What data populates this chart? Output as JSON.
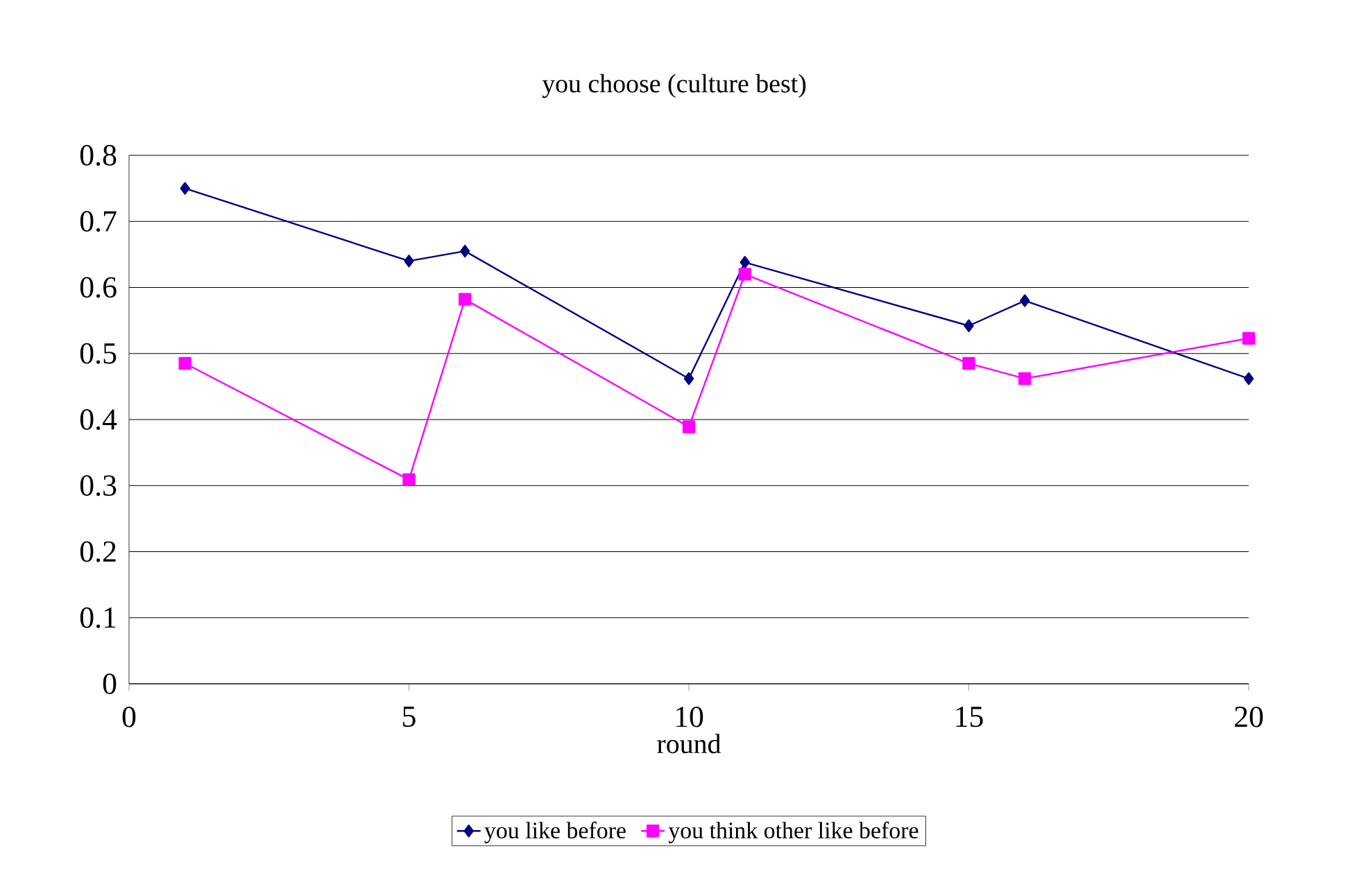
{
  "chart_data": {
    "type": "line",
    "title": "you choose (culture best)",
    "xlabel": "round",
    "x": [
      1,
      5,
      6,
      10,
      11,
      15,
      16,
      20
    ],
    "series": [
      {
        "name": "you like before",
        "color": "#000080",
        "marker": "diamond",
        "values": [
          0.75,
          0.64,
          0.655,
          0.462,
          0.638,
          0.542,
          0.58,
          0.462
        ]
      },
      {
        "name": "you think other like before",
        "color": "#ff00ff",
        "marker": "square",
        "values": [
          0.485,
          0.309,
          0.582,
          0.389,
          0.62,
          0.485,
          0.462,
          0.523
        ]
      }
    ],
    "xlim": [
      0,
      20
    ],
    "xticks": [
      0,
      5,
      10,
      15,
      20
    ],
    "ylim": [
      0,
      0.8
    ],
    "yticks": [
      0,
      0.1,
      0.2,
      0.3,
      0.4,
      0.5,
      0.6,
      0.7,
      0.8
    ],
    "grid": "y",
    "legend": "bottom",
    "line_style": "solid"
  }
}
